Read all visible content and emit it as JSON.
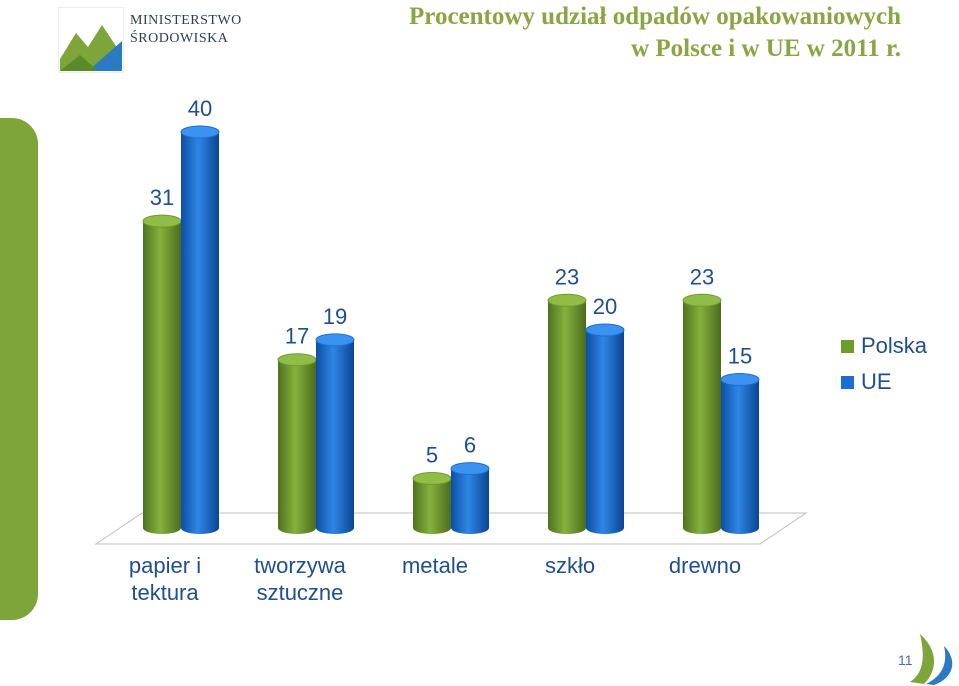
{
  "header": {
    "logo_line1": "MINISTERSTWO",
    "logo_line2": "ŚRODOWISKA",
    "title_line1": "Procentowy udział odpadów opakowaniowych",
    "title_line2": "w Polsce i w UE w 2011 r."
  },
  "page_number": "11",
  "colors": {
    "polska": "#6f9a2e",
    "ue": "#1a6fd0",
    "accent_green": "#7ea53a",
    "title": "#8aa543",
    "label_text": "#1f4f8f"
  },
  "icons": {
    "logo": "mountain-logo-icon",
    "bottom": "swoosh-logo-icon"
  },
  "chart_data": {
    "type": "bar",
    "title": "Procentowy udział odpadów opakowaniowych w Polsce i w UE w 2011 r.",
    "categories": [
      [
        "papier i",
        "tektura"
      ],
      [
        "tworzywa",
        "sztuczne"
      ],
      [
        "metale"
      ],
      [
        "szkło"
      ],
      [
        "drewno"
      ]
    ],
    "series": [
      {
        "name": "Polska",
        "values": [
          31,
          17,
          5,
          23,
          23
        ]
      },
      {
        "name": "UE",
        "values": [
          40,
          19,
          6,
          20,
          15
        ]
      }
    ],
    "ylim": [
      0,
      40
    ],
    "grid": false,
    "legend": "right",
    "style": "3d-cylinder"
  }
}
